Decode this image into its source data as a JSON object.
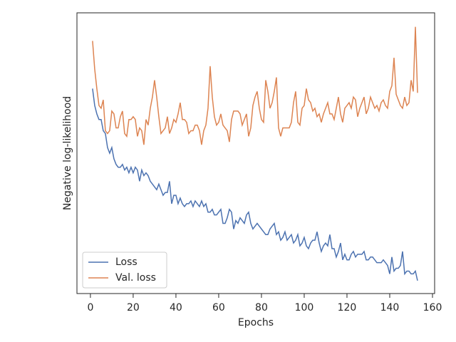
{
  "chart_data": {
    "type": "line",
    "xlabel": "Epochs",
    "ylabel": "Negative log-likelihood",
    "x": [
      1,
      2,
      3,
      4,
      5,
      6,
      7,
      8,
      9,
      10,
      11,
      12,
      13,
      14,
      15,
      16,
      17,
      18,
      19,
      20,
      21,
      22,
      23,
      24,
      25,
      26,
      27,
      28,
      29,
      30,
      31,
      32,
      33,
      34,
      35,
      36,
      37,
      38,
      39,
      40,
      41,
      42,
      43,
      44,
      45,
      46,
      47,
      48,
      49,
      50,
      51,
      52,
      53,
      54,
      55,
      56,
      57,
      58,
      59,
      60,
      61,
      62,
      63,
      64,
      65,
      66,
      67,
      68,
      69,
      70,
      71,
      72,
      73,
      74,
      75,
      76,
      77,
      78,
      79,
      80,
      81,
      82,
      83,
      84,
      85,
      86,
      87,
      88,
      89,
      90,
      91,
      92,
      93,
      94,
      95,
      96,
      97,
      98,
      99,
      100,
      101,
      102,
      103,
      104,
      105,
      106,
      107,
      108,
      109,
      110,
      111,
      112,
      113,
      114,
      115,
      116,
      117,
      118,
      119,
      120,
      121,
      122,
      123,
      124,
      125,
      126,
      127,
      128,
      129,
      130,
      131,
      132,
      133,
      134,
      135,
      136,
      137,
      138,
      139,
      140,
      141,
      142,
      143,
      144,
      145,
      146,
      147,
      148,
      149,
      150,
      151,
      152,
      153
    ],
    "series": [
      {
        "name": "Loss",
        "color": "#4c72b0",
        "values": [
          73,
          67,
          64,
          62,
          62,
          58,
          57,
          52,
          50,
          52,
          48,
          46,
          45,
          45,
          46,
          44,
          45,
          43,
          45,
          43,
          45,
          44,
          40,
          44,
          42,
          43,
          42,
          40,
          39,
          38,
          37,
          39,
          37,
          35,
          36,
          36,
          40,
          32,
          35,
          35,
          32,
          34,
          32,
          31,
          32,
          32,
          33,
          31,
          33,
          32,
          31,
          33,
          31,
          32,
          29,
          29,
          30,
          28,
          28,
          29,
          30,
          25,
          25,
          27,
          30,
          29,
          23,
          26,
          25,
          27,
          26,
          25,
          28,
          29,
          25,
          23,
          24,
          25,
          24,
          23,
          22,
          21,
          21,
          23,
          24,
          25,
          21,
          22,
          19,
          20,
          22,
          19,
          20,
          21,
          18,
          19,
          21,
          17,
          18,
          20,
          17,
          16,
          18,
          19,
          19,
          22,
          18,
          15,
          17,
          18,
          17,
          21,
          16,
          16,
          13,
          15,
          18,
          12,
          14,
          12,
          12,
          14,
          15,
          13,
          14,
          14,
          14,
          15,
          12,
          12,
          13,
          13,
          12,
          11,
          11,
          11,
          12,
          11,
          10,
          7,
          13,
          8,
          9,
          9,
          10,
          15,
          7,
          8,
          8,
          7,
          7,
          8,
          4.6
        ]
      },
      {
        "name": "Val. loss",
        "color": "#dd8452",
        "values": [
          90,
          80,
          73,
          67,
          66,
          69,
          58,
          57,
          58,
          65,
          64,
          59,
          59,
          63,
          65,
          57,
          56,
          62,
          62,
          63,
          62,
          56,
          59,
          58,
          53,
          62,
          60,
          66,
          70,
          76,
          70,
          63,
          57,
          58,
          59,
          63,
          57,
          59,
          62,
          61,
          64,
          68,
          62,
          62,
          61,
          57,
          58,
          58,
          60,
          60,
          58,
          53,
          58,
          60,
          66,
          81,
          70,
          63,
          60,
          61,
          64,
          60,
          59,
          58,
          54,
          62,
          65,
          65,
          65,
          64,
          60,
          62,
          64,
          56,
          59,
          67,
          70,
          72,
          66,
          62,
          61,
          76,
          72,
          66,
          68,
          72,
          77,
          59,
          56,
          59,
          59,
          59,
          59,
          61,
          68,
          72,
          61,
          60,
          66,
          67,
          73,
          69,
          68,
          65,
          66,
          63,
          64,
          61,
          64,
          66,
          68,
          64,
          64,
          62,
          66,
          70,
          64,
          61,
          66,
          67,
          68,
          66,
          70,
          69,
          63,
          66,
          68,
          70,
          64,
          66,
          70,
          68,
          66,
          67,
          65,
          68,
          69,
          67,
          66,
          72,
          74,
          84,
          71,
          69,
          67,
          66,
          70,
          67,
          68,
          76,
          72,
          95,
          71.5
        ]
      }
    ],
    "xlim": [
      -6.3,
      161
    ],
    "xticks": [
      0,
      20,
      40,
      60,
      80,
      100,
      120,
      140,
      160
    ],
    "ylim": [
      0,
      100
    ],
    "legend": "lower left"
  }
}
